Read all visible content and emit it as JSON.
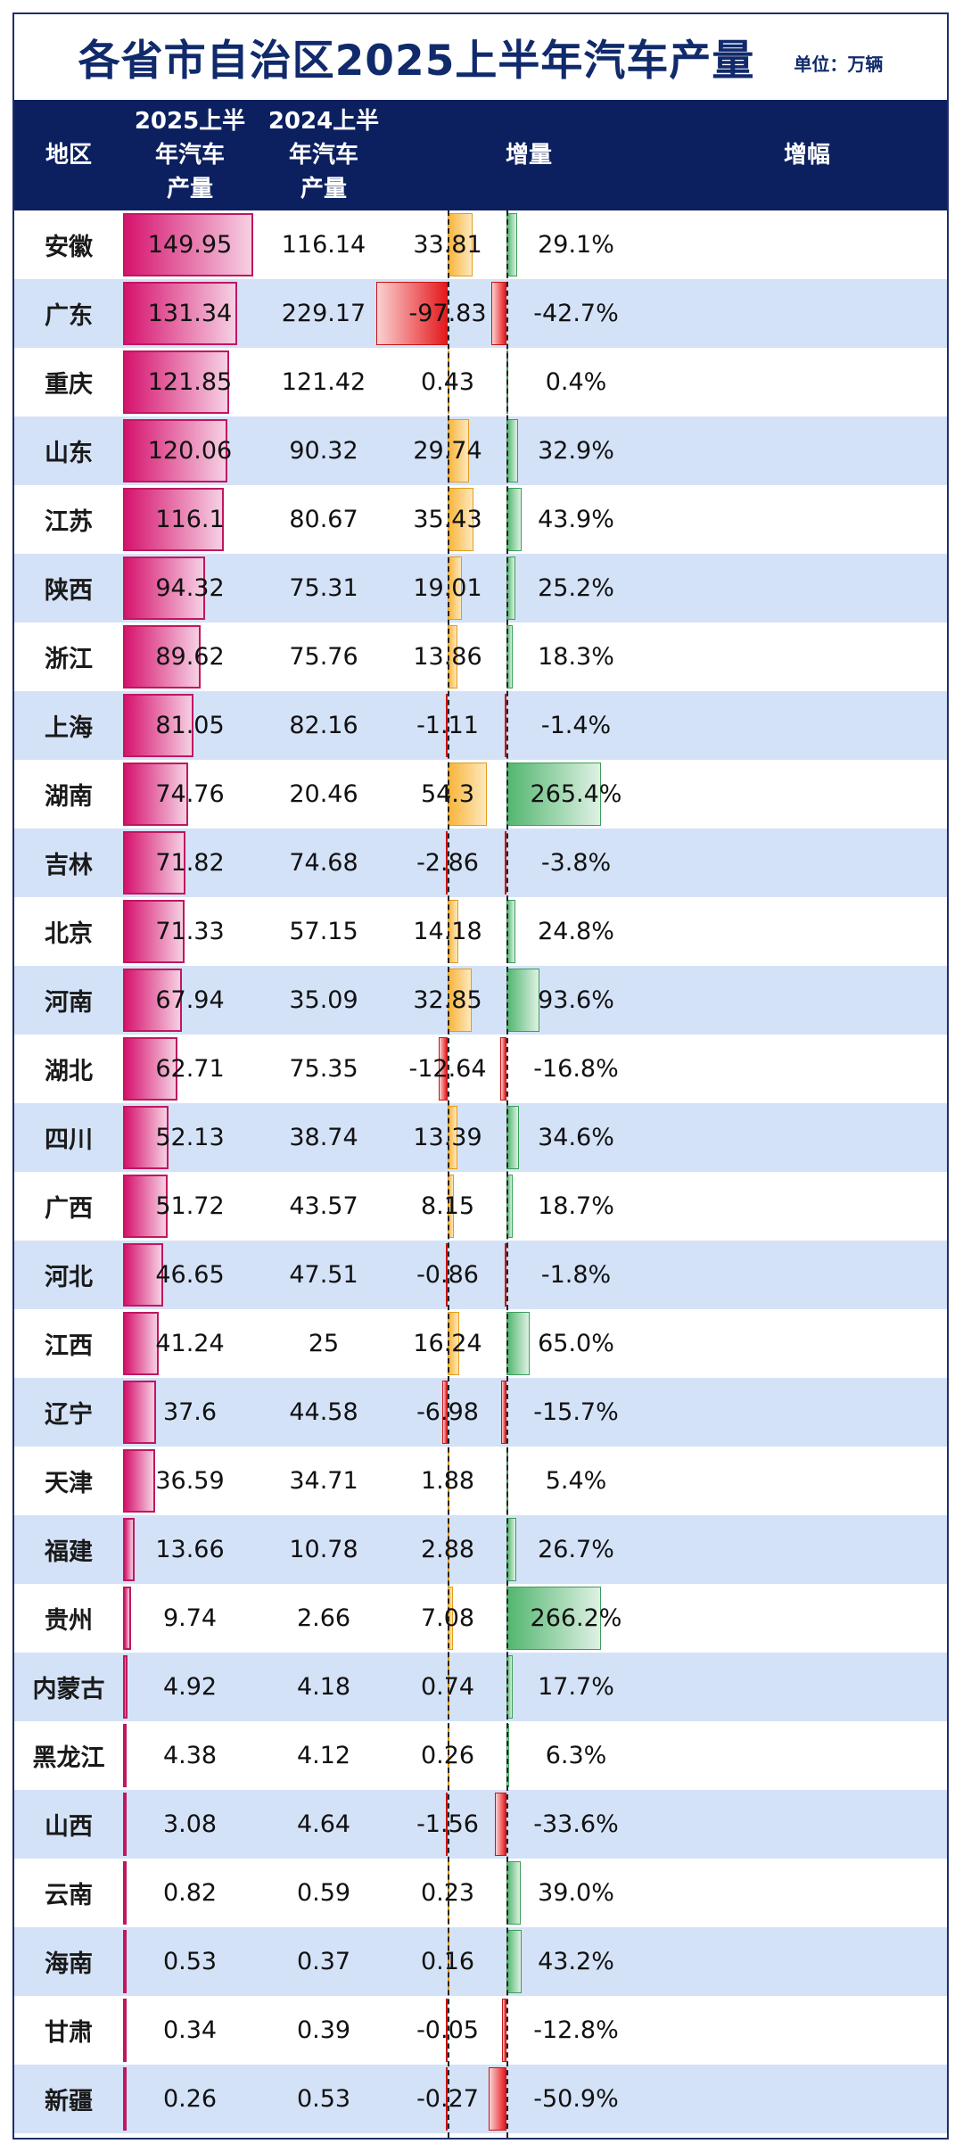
{
  "title": "各省市自治区2025上半年汽车产量",
  "unit_label": "单位：万辆",
  "columns": {
    "region": "地区",
    "h2025_line1": "2025上半年汽车",
    "h2025_line2": "产量",
    "h2024_line1": "2024上半年汽车",
    "h2024_line2": "产量",
    "growth": "增量",
    "rate": "增幅"
  },
  "colors": {
    "header_bg": "#0c205f",
    "title": "#102a6b",
    "alt_row": "#d4e2f8",
    "bar_2025": "#d6136e",
    "growth_positive": "#f8b53b",
    "growth_negative": "#e4191c",
    "rate_positive": "#52b66f",
    "rate_negative": "#e4191c"
  },
  "chart_data": {
    "type": "table",
    "rows": [
      {
        "region": "安徽",
        "h2025": "149.95",
        "h2024": "116.14",
        "growth": "33.81",
        "rate": "29.1%"
      },
      {
        "region": "广东",
        "h2025": "131.34",
        "h2024": "229.17",
        "growth": "-97.83",
        "rate": "-42.7%"
      },
      {
        "region": "重庆",
        "h2025": "121.85",
        "h2024": "121.42",
        "growth": "0.43",
        "rate": "0.4%"
      },
      {
        "region": "山东",
        "h2025": "120.06",
        "h2024": "90.32",
        "growth": "29.74",
        "rate": "32.9%"
      },
      {
        "region": "江苏",
        "h2025": "116.1",
        "h2024": "80.67",
        "growth": "35.43",
        "rate": "43.9%"
      },
      {
        "region": "陕西",
        "h2025": "94.32",
        "h2024": "75.31",
        "growth": "19.01",
        "rate": "25.2%"
      },
      {
        "region": "浙江",
        "h2025": "89.62",
        "h2024": "75.76",
        "growth": "13.86",
        "rate": "18.3%"
      },
      {
        "region": "上海",
        "h2025": "81.05",
        "h2024": "82.16",
        "growth": "-1.11",
        "rate": "-1.4%"
      },
      {
        "region": "湖南",
        "h2025": "74.76",
        "h2024": "20.46",
        "growth": "54.3",
        "rate": "265.4%"
      },
      {
        "region": "吉林",
        "h2025": "71.82",
        "h2024": "74.68",
        "growth": "-2.86",
        "rate": "-3.8%"
      },
      {
        "region": "北京",
        "h2025": "71.33",
        "h2024": "57.15",
        "growth": "14.18",
        "rate": "24.8%"
      },
      {
        "region": "河南",
        "h2025": "67.94",
        "h2024": "35.09",
        "growth": "32.85",
        "rate": "93.6%"
      },
      {
        "region": "湖北",
        "h2025": "62.71",
        "h2024": "75.35",
        "growth": "-12.64",
        "rate": "-16.8%"
      },
      {
        "region": "四川",
        "h2025": "52.13",
        "h2024": "38.74",
        "growth": "13.39",
        "rate": "34.6%"
      },
      {
        "region": "广西",
        "h2025": "51.72",
        "h2024": "43.57",
        "growth": "8.15",
        "rate": "18.7%"
      },
      {
        "region": "河北",
        "h2025": "46.65",
        "h2024": "47.51",
        "growth": "-0.86",
        "rate": "-1.8%"
      },
      {
        "region": "江西",
        "h2025": "41.24",
        "h2024": "25",
        "growth": "16.24",
        "rate": "65.0%"
      },
      {
        "region": "辽宁",
        "h2025": "37.6",
        "h2024": "44.58",
        "growth": "-6.98",
        "rate": "-15.7%"
      },
      {
        "region": "天津",
        "h2025": "36.59",
        "h2024": "34.71",
        "growth": "1.88",
        "rate": "5.4%"
      },
      {
        "region": "福建",
        "h2025": "13.66",
        "h2024": "10.78",
        "growth": "2.88",
        "rate": "26.7%"
      },
      {
        "region": "贵州",
        "h2025": "9.74",
        "h2024": "2.66",
        "growth": "7.08",
        "rate": "266.2%"
      },
      {
        "region": "内蒙古",
        "h2025": "4.92",
        "h2024": "4.18",
        "growth": "0.74",
        "rate": "17.7%"
      },
      {
        "region": "黑龙江",
        "h2025": "4.38",
        "h2024": "4.12",
        "growth": "0.26",
        "rate": "6.3%"
      },
      {
        "region": "山西",
        "h2025": "3.08",
        "h2024": "4.64",
        "growth": "-1.56",
        "rate": "-33.6%"
      },
      {
        "region": "云南",
        "h2025": "0.82",
        "h2024": "0.59",
        "growth": "0.23",
        "rate": "39.0%"
      },
      {
        "region": "海南",
        "h2025": "0.53",
        "h2024": "0.37",
        "growth": "0.16",
        "rate": "43.2%"
      },
      {
        "region": "甘肃",
        "h2025": "0.34",
        "h2024": "0.39",
        "growth": "-0.05",
        "rate": "-12.8%"
      },
      {
        "region": "新疆",
        "h2025": "0.26",
        "h2024": "0.53",
        "growth": "-0.27",
        "rate": "-50.9%"
      }
    ]
  }
}
